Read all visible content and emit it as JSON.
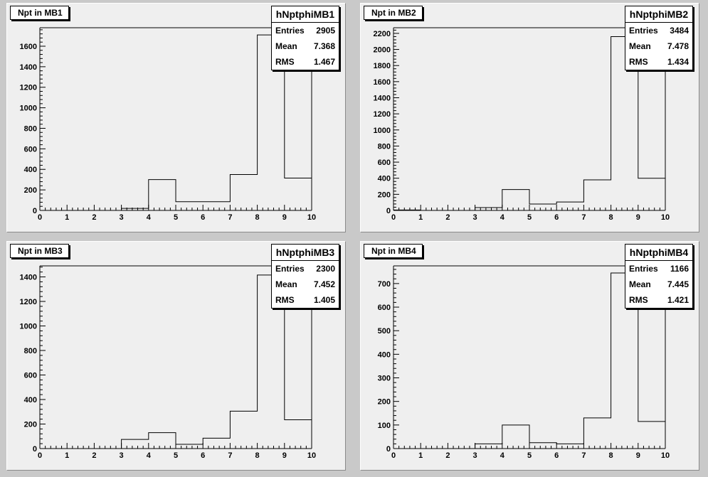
{
  "colors": {
    "pad_bg": "#efefef",
    "frame": "#000000",
    "canvas_bg": "#c9c9c9"
  },
  "chart_data": [
    {
      "type": "bar",
      "histogram": true,
      "title": "Npt in MB1",
      "stats": {
        "name": "hNptphiMB1",
        "entries_label": "Entries",
        "entries": "2905",
        "mean_label": "Mean",
        "mean": "7.368",
        "rms_label": "RMS",
        "rms": "1.467"
      },
      "bin_edges": [
        0,
        1,
        2,
        3,
        4,
        5,
        6,
        7,
        8,
        9,
        10
      ],
      "values": [
        0,
        0,
        0,
        20,
        300,
        85,
        85,
        350,
        1710,
        315
      ],
      "xlim": [
        0,
        10
      ],
      "ylim": [
        0,
        1780
      ],
      "yticks": [
        0,
        200,
        400,
        600,
        800,
        1000,
        1200,
        1400,
        1600
      ],
      "xticks": [
        0,
        1,
        2,
        3,
        4,
        5,
        6,
        7,
        8,
        9,
        10
      ]
    },
    {
      "type": "bar",
      "histogram": true,
      "title": "Npt in MB2",
      "stats": {
        "name": "hNptphiMB2",
        "entries_label": "Entries",
        "entries": "3484",
        "mean_label": "Mean",
        "mean": "7.478",
        "rms_label": "RMS",
        "rms": "1.434"
      },
      "bin_edges": [
        0,
        1,
        2,
        3,
        4,
        5,
        6,
        7,
        8,
        9,
        10
      ],
      "values": [
        5,
        0,
        0,
        35,
        260,
        80,
        105,
        380,
        2160,
        400
      ],
      "xlim": [
        0,
        10
      ],
      "ylim": [
        0,
        2270
      ],
      "yticks": [
        0,
        200,
        400,
        600,
        800,
        1000,
        1200,
        1400,
        1600,
        1800,
        2000,
        2200
      ],
      "xticks": [
        0,
        1,
        2,
        3,
        4,
        5,
        6,
        7,
        8,
        9,
        10
      ]
    },
    {
      "type": "bar",
      "histogram": true,
      "title": "Npt in MB3",
      "stats": {
        "name": "hNptphiMB3",
        "entries_label": "Entries",
        "entries": "2300",
        "mean_label": "Mean",
        "mean": "7.452",
        "rms_label": "RMS",
        "rms": "1.405"
      },
      "bin_edges": [
        0,
        1,
        2,
        3,
        4,
        5,
        6,
        7,
        8,
        9,
        10
      ],
      "values": [
        0,
        0,
        0,
        75,
        130,
        35,
        85,
        305,
        1415,
        235
      ],
      "xlim": [
        0,
        10
      ],
      "ylim": [
        0,
        1490
      ],
      "yticks": [
        0,
        200,
        400,
        600,
        800,
        1000,
        1200,
        1400
      ],
      "xticks": [
        0,
        1,
        2,
        3,
        4,
        5,
        6,
        7,
        8,
        9,
        10
      ]
    },
    {
      "type": "bar",
      "histogram": true,
      "title": "Npt in MB4",
      "stats": {
        "name": "hNptphiMB4",
        "entries_label": "Entries",
        "entries": "1166",
        "mean_label": "Mean",
        "mean": "7.445",
        "rms_label": "RMS",
        "rms": "1.421"
      },
      "bin_edges": [
        0,
        1,
        2,
        3,
        4,
        5,
        6,
        7,
        8,
        9,
        10
      ],
      "values": [
        0,
        0,
        0,
        20,
        100,
        25,
        20,
        130,
        745,
        115
      ],
      "xlim": [
        0,
        10
      ],
      "ylim": [
        0,
        775
      ],
      "yticks": [
        0,
        100,
        200,
        300,
        400,
        500,
        600,
        700
      ],
      "xticks": [
        0,
        1,
        2,
        3,
        4,
        5,
        6,
        7,
        8,
        9,
        10
      ]
    }
  ]
}
